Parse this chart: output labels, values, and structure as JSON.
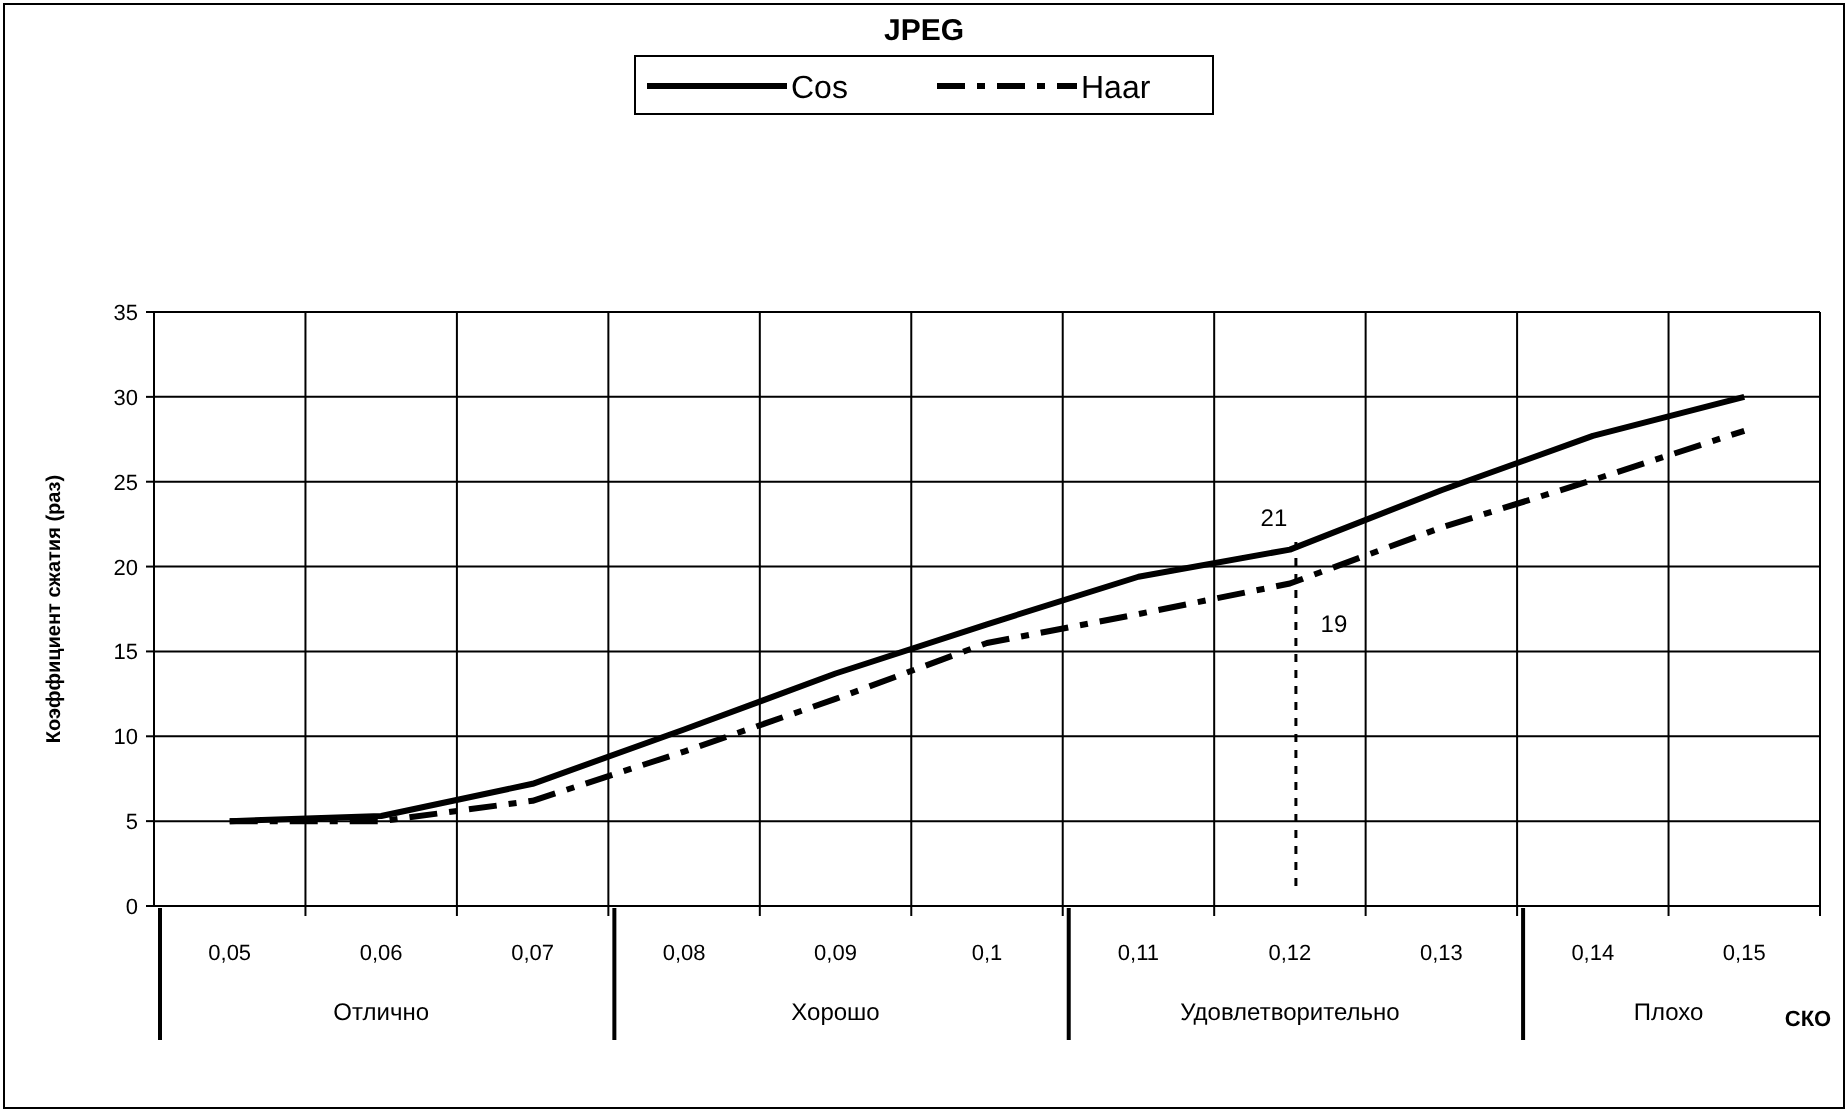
{
  "chart_data": {
    "type": "line",
    "title": "JPEG",
    "xlabel": "СКО",
    "ylabel": "Коэффициент сжатия (раз)",
    "categories": [
      "0,05",
      "0,06",
      "0,07",
      "0,08",
      "0,09",
      "0,1",
      "0,11",
      "0,12",
      "0,13",
      "0,14",
      "0,15"
    ],
    "series": [
      {
        "name": "Cos",
        "color": "#000000",
        "line_style": "solid",
        "values": [
          5,
          5.3,
          7.2,
          10.4,
          13.7,
          16.6,
          19.4,
          21,
          24.5,
          27.7,
          30
        ]
      },
      {
        "name": "Haar",
        "color": "#000000",
        "line_style": "dashed",
        "values": [
          5,
          5,
          6.2,
          9.1,
          12.2,
          15.5,
          17.2,
          19,
          22.3,
          25.1,
          28
        ]
      }
    ],
    "ylim": [
      0,
      35
    ],
    "yticks": [
      0,
      5,
      10,
      15,
      20,
      25,
      30,
      35
    ],
    "grid": true,
    "legend": "top",
    "ref_lines": [
      {
        "axis": "x",
        "value": "0,12",
        "line_style": "dotted"
      }
    ],
    "annotations": [
      {
        "text": "21",
        "x": "0,12",
        "y": 21
      },
      {
        "text": "19",
        "x": "0,12",
        "y": 19
      },
      "Отлично",
      "Хорошо",
      "Удовлетворительно",
      "Плохо"
    ]
  }
}
